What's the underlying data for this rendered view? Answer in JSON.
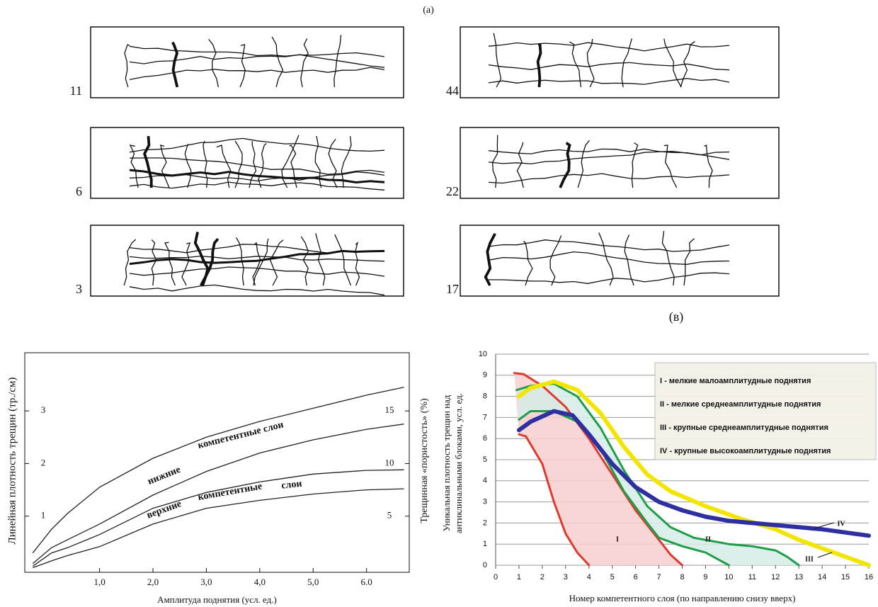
{
  "labels": {
    "a": "(a)",
    "b": "(в)"
  },
  "panels": [
    {
      "number": "11"
    },
    {
      "number": "6"
    },
    {
      "number": "3"
    },
    {
      "number": "44"
    },
    {
      "number": "22"
    },
    {
      "number": "17"
    }
  ],
  "chart_data": [
    {
      "type": "line",
      "xlabel": "Амплитуда поднятия (усл. ед.)",
      "ylabel": "Линейная плотность трещин (тр./см)",
      "y2label": "Трещинная «пористость» (%)",
      "xlim": [
        -0.4,
        6.8
      ],
      "ylim": [
        0,
        3.5
      ],
      "y2lim": [
        0,
        17.5
      ],
      "xticks": [
        {
          "value": 1,
          "label": "1,0"
        },
        {
          "value": 2,
          "label": "2,0"
        },
        {
          "value": 3,
          "label": "3,0"
        },
        {
          "value": 4,
          "label": "4,0"
        },
        {
          "value": 5,
          "label": "5,0"
        },
        {
          "value": 6,
          "label": "6.0"
        }
      ],
      "yticks": [
        1,
        2,
        3
      ],
      "y2ticks": [
        5,
        10,
        15
      ],
      "x": [
        -0.25,
        0.1,
        0.4,
        1,
        2,
        3,
        4,
        5,
        6,
        6.7
      ],
      "series": [
        {
          "color": "#222222",
          "values": [
            0.3,
            0.75,
            1.05,
            1.55,
            2.1,
            2.5,
            2.8,
            3.05,
            3.3,
            3.45
          ]
        },
        {
          "color": "#222222",
          "values": [
            0.1,
            0.4,
            0.55,
            0.85,
            1.4,
            1.85,
            2.2,
            2.45,
            2.65,
            2.75
          ]
        },
        {
          "color": "#222222",
          "values": [
            0.05,
            0.3,
            0.4,
            0.65,
            1.15,
            1.45,
            1.65,
            1.8,
            1.87,
            1.88
          ]
        },
        {
          "color": "#222222",
          "values": [
            0.02,
            0.15,
            0.25,
            0.42,
            0.85,
            1.15,
            1.3,
            1.42,
            1.5,
            1.52
          ]
        }
      ],
      "annotations": [
        "нижние",
        "компетентные слои",
        "верхние",
        "компетентные",
        "слои"
      ]
    },
    {
      "type": "line",
      "xlabel": "Номер компетентного слоя (по направлению снизу вверх)",
      "ylabel": [
        "Уникальная плотность трещин над",
        "антиклинальными блоками, усл. ед."
      ],
      "xlim": [
        0,
        16
      ],
      "ylim": [
        0,
        10
      ],
      "xticks": [
        0,
        1,
        2,
        3,
        4,
        5,
        6,
        7,
        8,
        9,
        10,
        11,
        12,
        13,
        14,
        15,
        16
      ],
      "yticks": [
        0,
        1,
        2,
        3,
        4,
        5,
        6,
        7,
        8,
        9,
        10
      ],
      "grid": true,
      "legend": [
        "I - мелкие малоамплитудные поднятия",
        "II - мелкие среднеамплитудные поднятия",
        "III - крупные среднеамплитудные поднятия",
        "IV - крупные высокоамплитудные поднятия"
      ],
      "series": [
        {
          "color": "#e03a2f",
          "x": [
            0.8,
            1.2,
            2,
            3,
            4,
            5,
            6,
            7,
            7.5,
            8
          ],
          "values": [
            9.1,
            9.05,
            8.5,
            7.5,
            6,
            4.3,
            2.6,
            1.2,
            0.5,
            0
          ]
        },
        {
          "color": "#e03a2f",
          "fill": "#f8cfcf",
          "x": [
            1,
            1.3,
            2,
            2.5,
            3,
            3.5,
            4
          ],
          "values": [
            6.2,
            6.1,
            4.8,
            3,
            1.5,
            0.6,
            0
          ]
        },
        {
          "color": "#1f9e4a",
          "x": [
            0.9,
            1.5,
            2.5,
            3.5,
            4.5,
            5.5,
            6.5,
            7.5,
            8.5,
            10,
            11,
            12,
            12.5,
            13
          ],
          "values": [
            8.3,
            8.5,
            8.6,
            8,
            6.5,
            4.5,
            2.8,
            1.8,
            1.3,
            1,
            0.9,
            0.7,
            0.4,
            0
          ]
        },
        {
          "color": "#1f9e4a",
          "fill": "#d6ece6",
          "x": [
            1,
            1.5,
            2.5,
            3.5,
            4.5,
            5.5,
            6.5,
            7,
            8,
            9,
            9.5,
            10
          ],
          "values": [
            6.9,
            7.3,
            7.3,
            6.8,
            5.5,
            3.5,
            2,
            1.3,
            0.9,
            0.6,
            0.3,
            0
          ]
        },
        {
          "color": "#f2e600",
          "x": [
            1,
            1.5,
            2.5,
            3.5,
            4.5,
            5.5,
            6.5,
            7.5,
            9,
            10.5,
            12,
            13,
            14,
            15,
            16
          ],
          "values": [
            8,
            8.4,
            8.7,
            8.3,
            7.2,
            5.6,
            4.3,
            3.5,
            2.8,
            2.2,
            1.7,
            1.2,
            0.8,
            0.4,
            0
          ]
        },
        {
          "color": "#2e2fa0",
          "x": [
            1,
            1.5,
            2.5,
            3.3,
            4,
            5,
            6,
            7,
            8,
            9,
            10,
            12,
            14,
            16
          ],
          "values": [
            6.4,
            6.8,
            7.3,
            7.1,
            6.2,
            4.8,
            3.7,
            3,
            2.6,
            2.3,
            2.1,
            1.9,
            1.7,
            1.4
          ]
        }
      ],
      "annotations": [
        "I",
        "II",
        "III",
        "IV"
      ]
    }
  ]
}
